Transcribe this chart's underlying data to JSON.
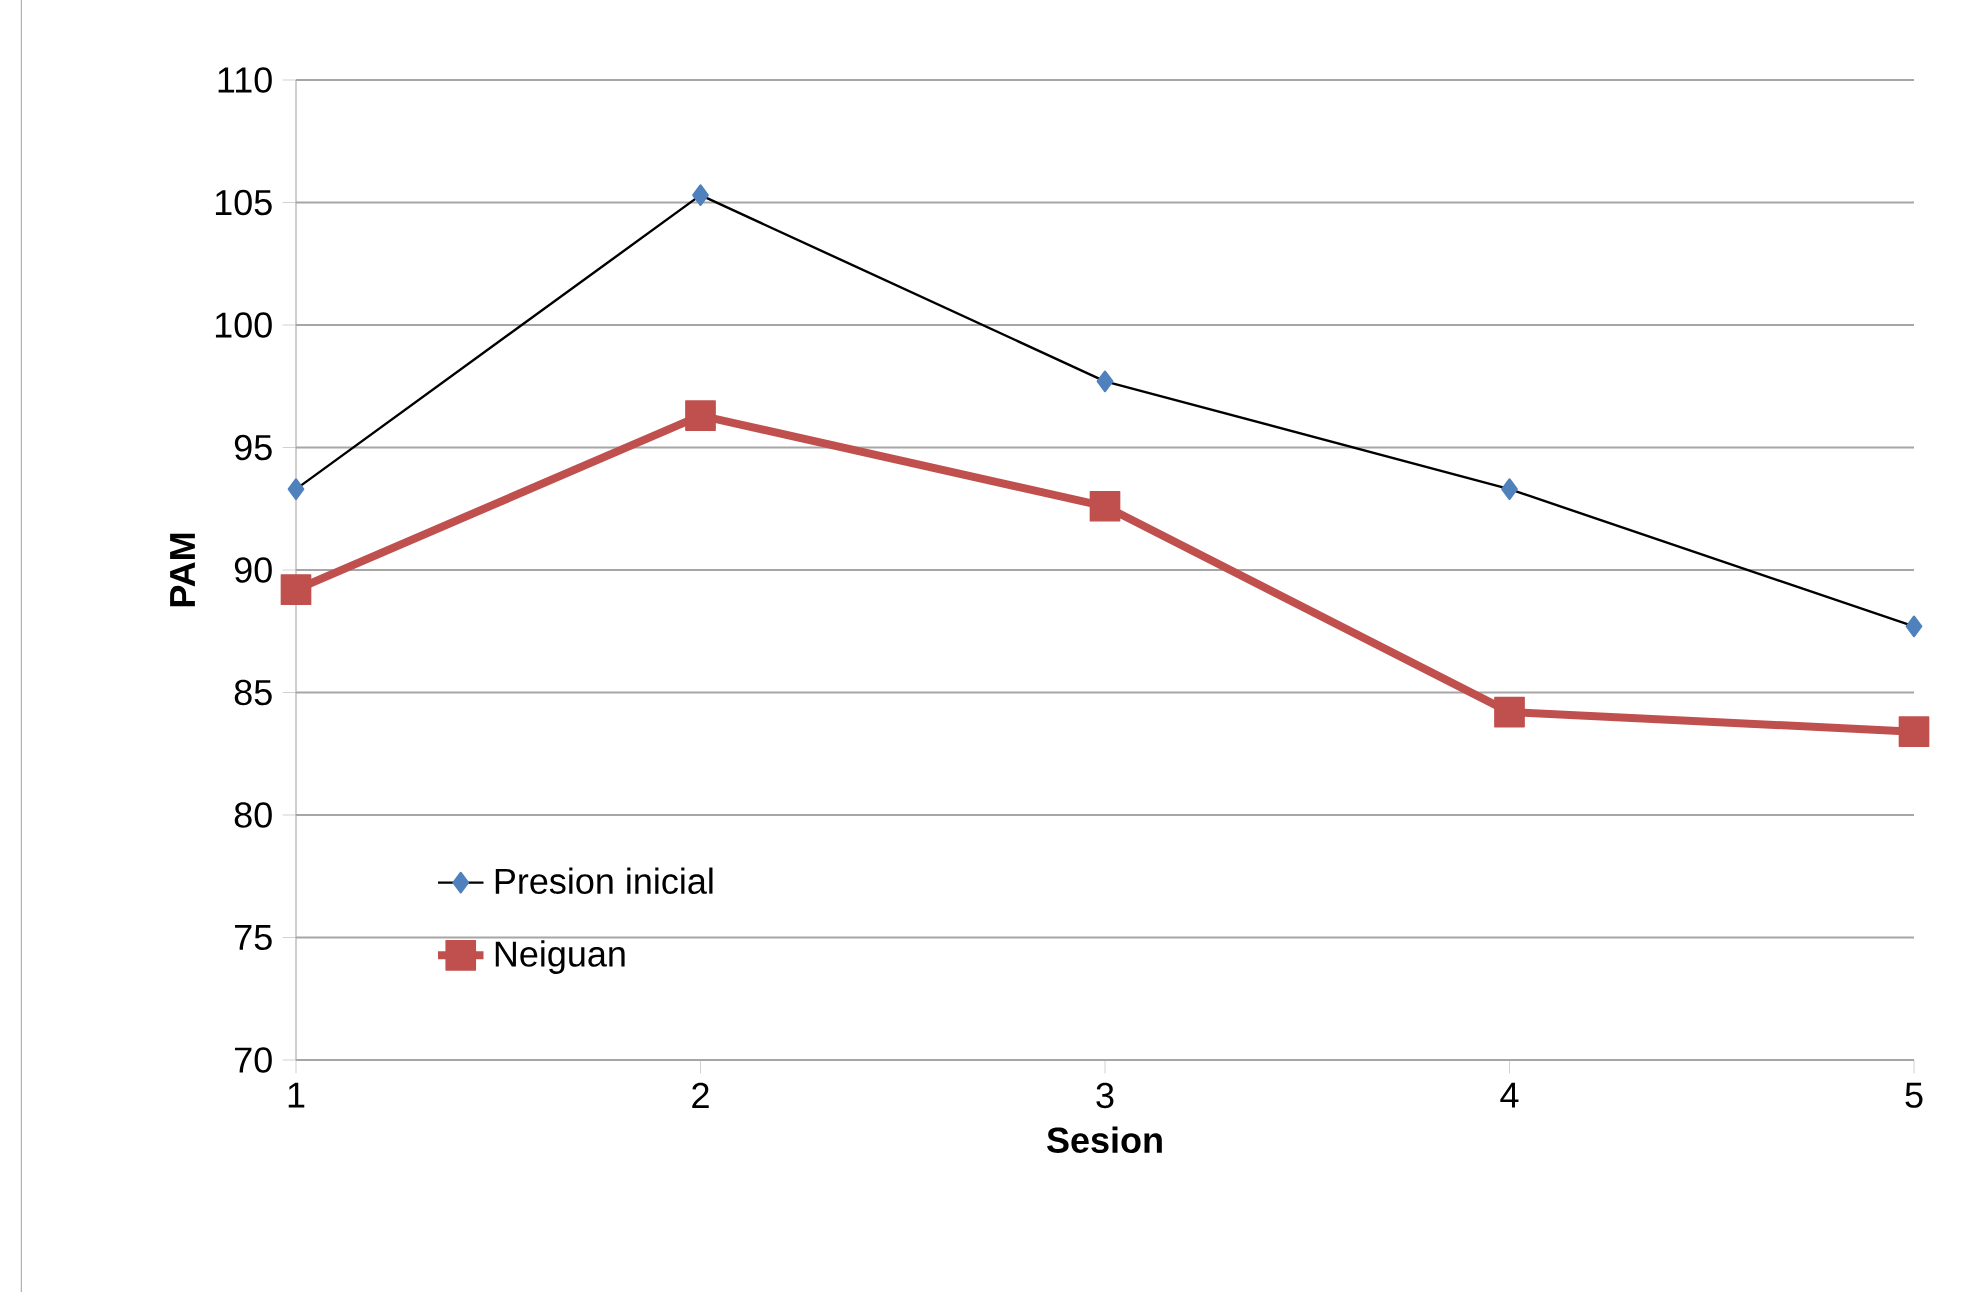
{
  "chart_data": {
    "type": "line",
    "xlabel": "Sesion",
    "ylabel": "PAM",
    "x": [
      1,
      2,
      3,
      4,
      5
    ],
    "series": [
      {
        "name": "Presion inicial",
        "color": "#4f81bd",
        "marker": "diamond",
        "values": [
          93.3,
          105.3,
          97.7,
          93.3,
          87.7
        ]
      },
      {
        "name": "Neiguan",
        "color": "#c0504d",
        "marker": "square",
        "values": [
          89.2,
          96.3,
          92.6,
          84.2,
          83.4
        ]
      }
    ],
    "xlim": [
      1,
      5
    ],
    "xticks": [
      1,
      2,
      3,
      4,
      5
    ],
    "ylim": [
      70,
      110
    ],
    "yticks": [
      70,
      75,
      80,
      85,
      90,
      95,
      100,
      105,
      110
    ],
    "grid": "y",
    "legend": "bottom left"
  }
}
